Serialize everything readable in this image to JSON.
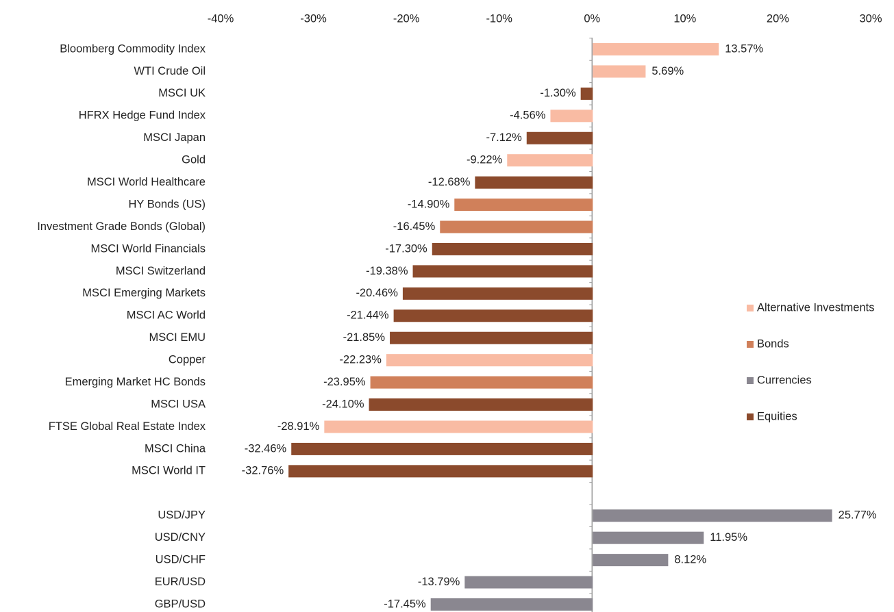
{
  "chart_data": {
    "type": "bar",
    "orientation": "horizontal",
    "legend": "right",
    "categories": [
      "Bloomberg Commodity Index",
      "WTI Crude Oil",
      "MSCI UK",
      "HFRX Hedge Fund Index",
      "MSCI Japan",
      "Gold",
      "MSCI World Healthcare",
      "HY Bonds (US)",
      "Investment Grade Bonds (Global)",
      "MSCI World Financials",
      "MSCI Switzerland",
      "MSCI Emerging Markets",
      "MSCI AC World",
      "MSCI EMU",
      "Copper",
      "Emerging Market HC Bonds",
      "MSCI USA",
      "FTSE Global Real Estate Index",
      "MSCI China",
      "MSCI World IT",
      null,
      "USD/JPY",
      "USD/CNY",
      "USD/CHF",
      "EUR/USD",
      "GBP/USD"
    ],
    "series": [
      {
        "name": "Alternative Investments",
        "color": "#f9bba3",
        "values": [
          13.57,
          5.69,
          null,
          -4.56,
          null,
          -9.22,
          null,
          null,
          null,
          null,
          null,
          null,
          null,
          null,
          -22.23,
          null,
          null,
          -28.91,
          null,
          null,
          null,
          null,
          null,
          null,
          null,
          null
        ],
        "value_labels": [
          "13.57%",
          "5.69%",
          null,
          "-4.56%",
          null,
          "-9.22%",
          null,
          null,
          null,
          null,
          null,
          null,
          null,
          null,
          "-22.23%",
          null,
          null,
          "-28.91%",
          null,
          null,
          null,
          null,
          null,
          null,
          null,
          null
        ]
      },
      {
        "name": "Bonds",
        "color": "#d0805a",
        "values": [
          null,
          null,
          null,
          null,
          null,
          null,
          null,
          -14.9,
          -16.45,
          null,
          null,
          null,
          null,
          null,
          null,
          -23.95,
          null,
          null,
          null,
          null,
          null,
          null,
          null,
          null,
          null,
          null
        ],
        "value_labels": [
          null,
          null,
          null,
          null,
          null,
          null,
          null,
          "-14.90%",
          "-16.45%",
          null,
          null,
          null,
          null,
          null,
          null,
          "-23.95%",
          null,
          null,
          null,
          null,
          null,
          null,
          null,
          null,
          null,
          null
        ]
      },
      {
        "name": "Currencies",
        "color": "#8a8790",
        "values": [
          null,
          null,
          null,
          null,
          null,
          null,
          null,
          null,
          null,
          null,
          null,
          null,
          null,
          null,
          null,
          null,
          null,
          null,
          null,
          null,
          null,
          25.77,
          11.95,
          8.12,
          -13.79,
          -17.45
        ],
        "value_labels": [
          null,
          null,
          null,
          null,
          null,
          null,
          null,
          null,
          null,
          null,
          null,
          null,
          null,
          null,
          null,
          null,
          null,
          null,
          null,
          null,
          null,
          "25.77%",
          "11.95%",
          "8.12%",
          "-13.79%",
          "-17.45%"
        ]
      },
      {
        "name": "Equities",
        "color": "#8b4a2c",
        "values": [
          null,
          null,
          -1.3,
          null,
          -7.12,
          null,
          -12.68,
          null,
          null,
          -17.3,
          -19.38,
          -20.46,
          -21.44,
          -21.85,
          null,
          null,
          -24.1,
          null,
          -32.46,
          -32.76,
          null,
          null,
          null,
          null,
          null,
          null
        ],
        "value_labels": [
          null,
          null,
          "-1.30%",
          null,
          "-7.12%",
          null,
          "-12.68%",
          null,
          null,
          "-17.30%",
          "-19.38%",
          "-20.46%",
          "-21.44%",
          "-21.85%",
          null,
          null,
          "-24.10%",
          null,
          "-32.46%",
          "-32.76%",
          null,
          null,
          null,
          null,
          null,
          null
        ]
      }
    ],
    "xlim": [
      -40,
      30
    ],
    "xticks": [
      {
        "value": -40,
        "label": "-40%"
      },
      {
        "value": -30,
        "label": "-30%"
      },
      {
        "value": -20,
        "label": "-20%"
      },
      {
        "value": -10,
        "label": "-10%"
      },
      {
        "value": 0,
        "label": "0%"
      },
      {
        "value": 10,
        "label": "10%"
      },
      {
        "value": 20,
        "label": "20%"
      },
      {
        "value": 30,
        "label": "30%"
      }
    ]
  }
}
